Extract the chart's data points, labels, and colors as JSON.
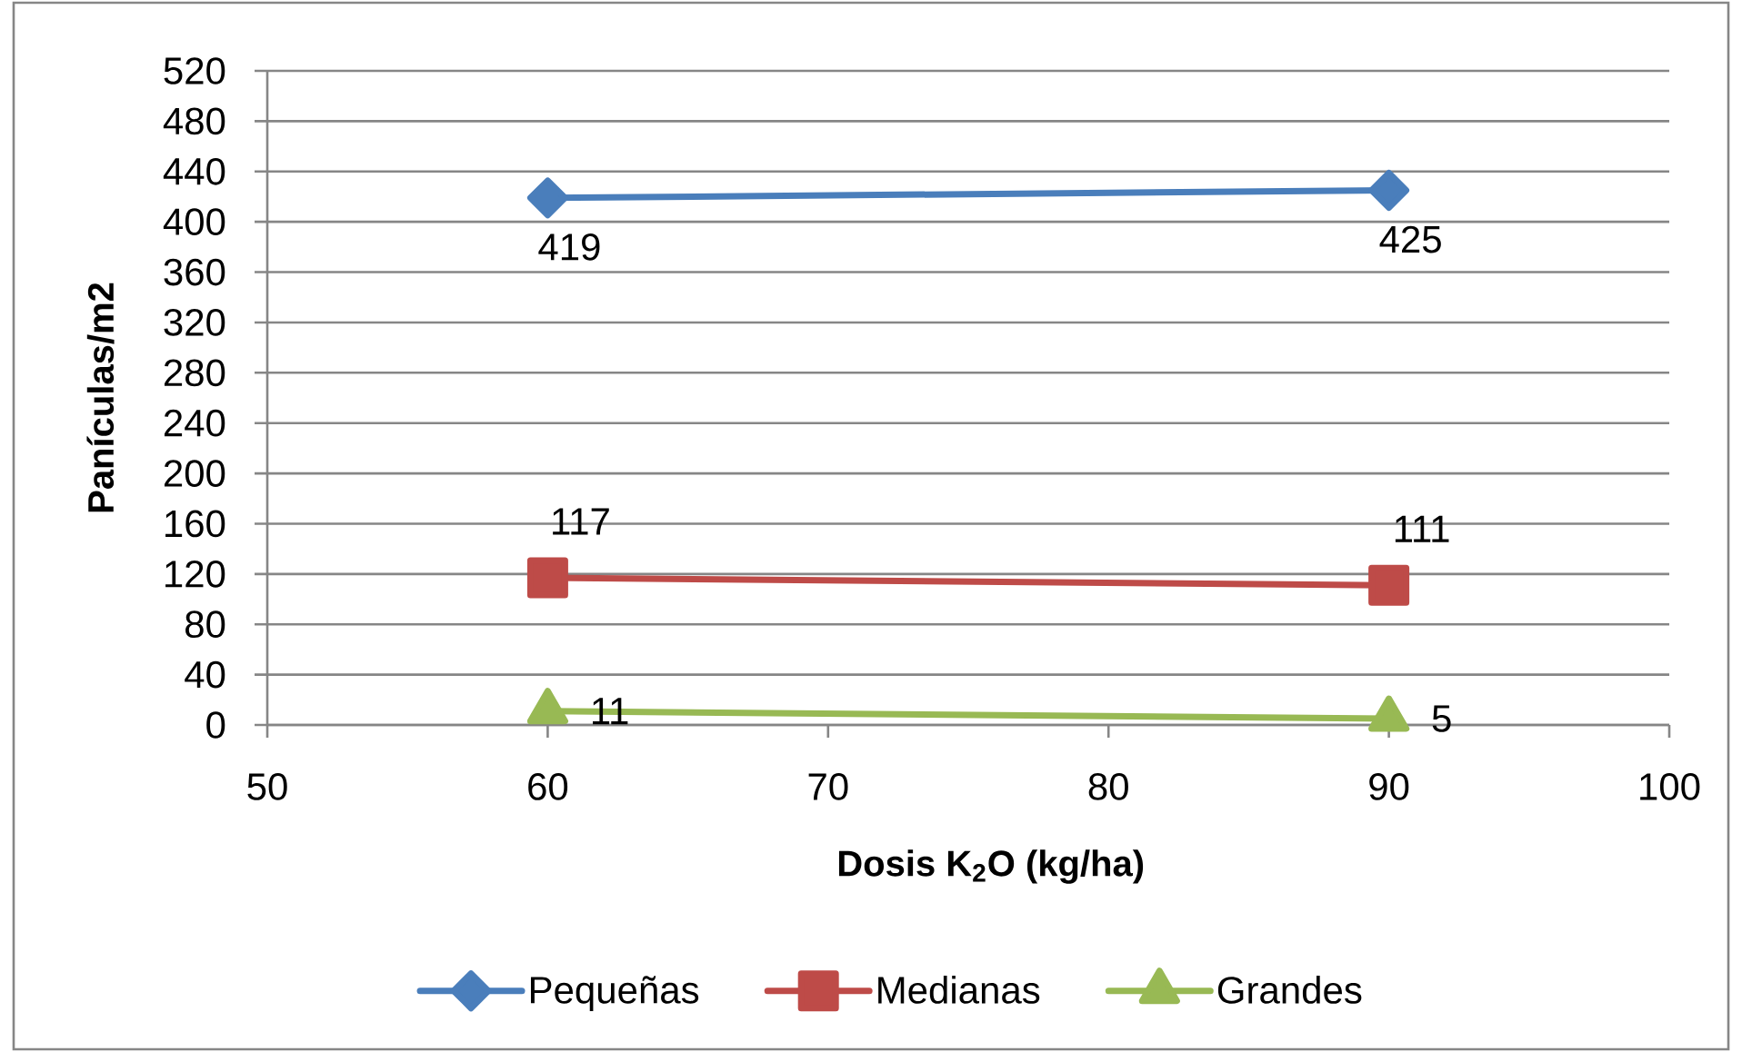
{
  "chart_data": {
    "type": "line",
    "xlabel": "Dosis K$_{2}$O (kg/ha)",
    "ylabel": "Panículas/m2",
    "x": [
      60,
      90
    ],
    "series": [
      {
        "name": "Pequeñas",
        "color": "#4a7ebb",
        "marker": "diamond",
        "values": [
          419,
          425
        ]
      },
      {
        "name": "Medianas",
        "color": "#be4b48",
        "marker": "square",
        "values": [
          117,
          111
        ]
      },
      {
        "name": "Grandes",
        "color": "#98b954",
        "marker": "triangle",
        "values": [
          11,
          5
        ]
      }
    ],
    "xlim": [
      50,
      100
    ],
    "xticks": [
      50,
      60,
      70,
      80,
      90,
      100
    ],
    "ylim": [
      0,
      520
    ],
    "yticks": [
      0,
      40,
      80,
      120,
      160,
      200,
      240,
      280,
      320,
      360,
      400,
      440,
      480,
      520
    ],
    "grid": "y",
    "legend": "bottom",
    "data_labels": true,
    "line_style": "solid"
  }
}
